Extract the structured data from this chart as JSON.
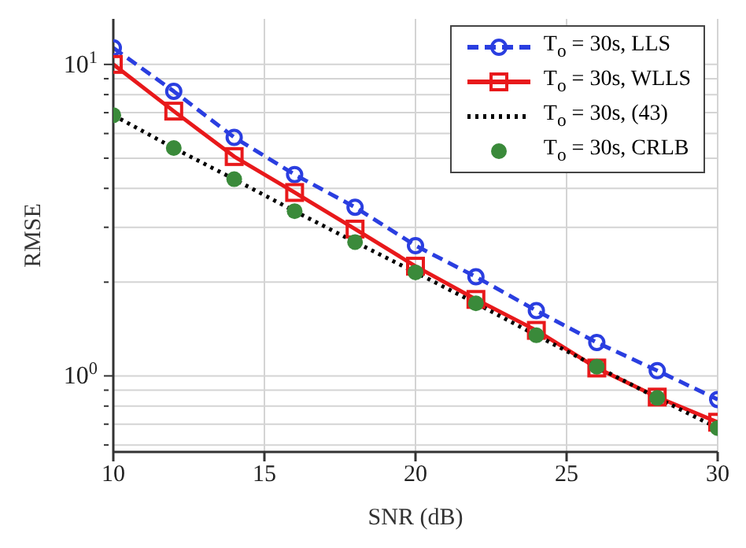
{
  "chart_data": {
    "type": "line",
    "xlabel": "SNR (dB)",
    "ylabel": "RMSE",
    "log": "y",
    "grid": true,
    "legend": "top right",
    "xlim": [
      10,
      30
    ],
    "xticks": [
      10,
      15,
      20,
      25,
      30
    ],
    "ylim": [
      0.57,
      14
    ],
    "yticks": [
      {
        "value": 0.6,
        "label": null
      },
      {
        "value": 0.7,
        "label": null
      },
      {
        "value": 0.8,
        "label": null
      },
      {
        "value": 0.9,
        "label": null
      },
      {
        "value": 1,
        "label": "10$^{0}$"
      },
      {
        "value": 2,
        "label": null
      },
      {
        "value": 3,
        "label": null
      },
      {
        "value": 4,
        "label": null
      },
      {
        "value": 5,
        "label": null
      },
      {
        "value": 6,
        "label": null
      },
      {
        "value": 7,
        "label": null
      },
      {
        "value": 8,
        "label": null
      },
      {
        "value": 9,
        "label": null
      },
      {
        "value": 10,
        "label": "10$^{1}$"
      }
    ],
    "x": [
      10,
      12,
      14,
      16,
      18,
      20,
      22,
      24,
      26,
      28,
      30
    ],
    "series": [
      {
        "name": "T$_{o}$ = 30s, LLS",
        "color": "#2a3ee0",
        "line_style": "dashed",
        "marker": "circle",
        "values": [
          11.3,
          8.2,
          5.83,
          4.43,
          3.48,
          2.62,
          2.08,
          1.62,
          1.28,
          1.04,
          0.84
        ]
      },
      {
        "name": "T$_{o}$ = 30s, WLLS",
        "color": "#e8191b",
        "line_style": "solid",
        "marker": "square",
        "values": [
          10.0,
          7.08,
          5.06,
          3.88,
          2.96,
          2.25,
          1.76,
          1.4,
          1.06,
          0.855,
          0.71
        ]
      },
      {
        "name": "T$_{o}$ = 30s, (43)",
        "color": "#000000",
        "line_style": "dotted",
        "marker": "none",
        "values": [
          6.87,
          5.39,
          4.28,
          3.38,
          2.69,
          2.15,
          1.71,
          1.35,
          1.07,
          0.85,
          0.68
        ]
      },
      {
        "name": "T$_{o}$ = 30s, CRLB",
        "type": "scatter",
        "color": "#3a8a3a",
        "marker": "circle",
        "values": [
          6.87,
          5.39,
          4.28,
          3.38,
          2.69,
          2.15,
          1.71,
          1.35,
          1.07,
          0.85,
          0.68
        ]
      }
    ]
  }
}
